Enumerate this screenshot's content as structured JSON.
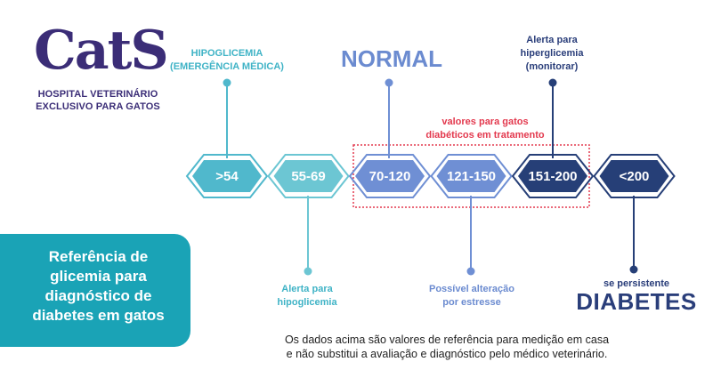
{
  "logo": {
    "mark": "CatS",
    "line1": "HOSPITAL VETERINÁRIO",
    "line2": "EXCLUSIVO PARA GATOS"
  },
  "top_labels": {
    "hypo_emergency": [
      "HIPOGLICEMIA",
      "(EMERGÊNCIA MÉDICA)"
    ],
    "normal": "NORMAL",
    "alert_hyper": [
      "Alerta para",
      "hiperglicemia",
      "(monitorar)"
    ],
    "diabetic_note": [
      "valores para gatos",
      "diabéticos em tratamento"
    ]
  },
  "ranges": [
    {
      "label": ">54",
      "color": "#50b8cc"
    },
    {
      "label": "55-69",
      "color": "#6cc6d3"
    },
    {
      "label": "70-120",
      "color": "#6f8fd4"
    },
    {
      "label": "121-150",
      "color": "#6f8fd4"
    },
    {
      "label": "151-200",
      "color": "#263f77"
    },
    {
      "label": "<200",
      "color": "#263f77"
    }
  ],
  "bottom_labels": {
    "alert_hypo": [
      "Alerta para",
      "hipoglicemia"
    ],
    "stress": [
      "Possível alteração",
      "por estresse"
    ],
    "persist": "se persistente",
    "diabetes": "DIABETES"
  },
  "panel": {
    "text": [
      "Referência de",
      "glicemia para",
      "diagnóstico de",
      "diabetes em gatos"
    ]
  },
  "disclaimer": [
    "Os dados acima são valores de referência para medição em casa",
    "e não substitui a avaliação e diagnóstico pelo médico veterinário."
  ],
  "colors": {
    "teal": "#3fb3c6",
    "periwinkle": "#6b8bd0",
    "navy": "#2a3e7a",
    "red": "#e3394e",
    "brand": "#3b2d77"
  }
}
